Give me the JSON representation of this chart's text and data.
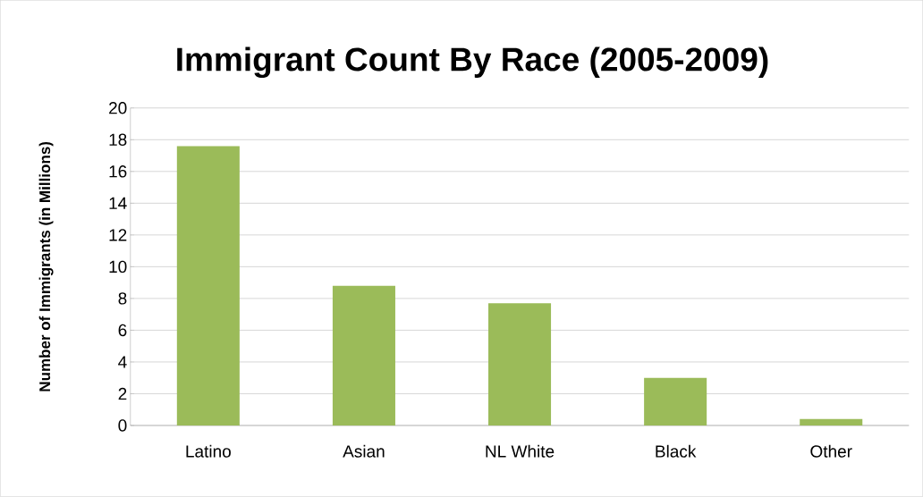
{
  "chart_data": {
    "type": "bar",
    "title": "Immigrant Count By Race (2005-2009)",
    "ylabel": "Number of Immigrants (in Millions)",
    "categories": [
      "Latino",
      "Asian",
      "NL White",
      "Black",
      "Other"
    ],
    "values": [
      17.6,
      8.8,
      7.7,
      3.0,
      0.4
    ],
    "color": "#9bbb59",
    "ylim": [
      0,
      20
    ],
    "yticks": [
      0,
      2,
      4,
      6,
      8,
      10,
      12,
      14,
      16,
      18,
      20
    ],
    "grid": "y"
  }
}
